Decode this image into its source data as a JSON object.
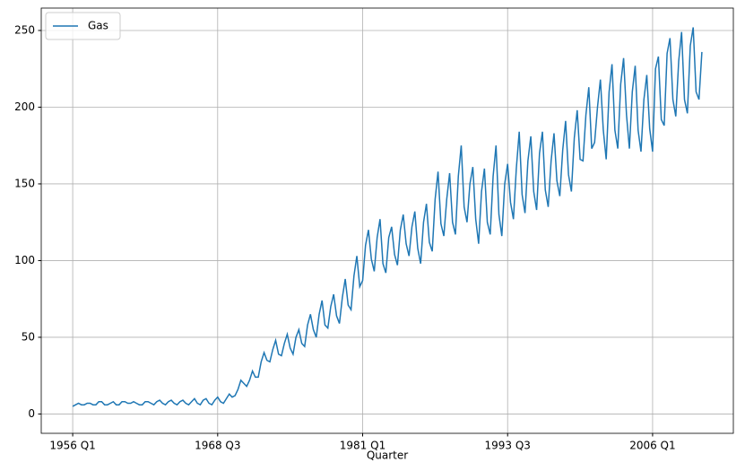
{
  "chart_data": {
    "type": "line",
    "x_label": "Quarter",
    "categories": [
      "1956 Q1",
      null,
      null,
      null,
      null,
      null,
      null,
      null,
      null,
      null,
      null,
      null,
      null,
      null,
      null,
      null,
      null,
      null,
      null,
      null,
      null,
      null,
      null,
      null,
      null,
      null,
      null,
      null,
      null,
      null,
      null,
      null,
      null,
      null,
      null,
      null,
      null,
      null,
      null,
      null,
      null,
      null,
      null,
      null,
      null,
      null,
      null,
      null,
      null,
      null,
      "1968 Q3",
      null,
      null,
      null,
      null,
      null,
      null,
      null,
      null,
      null,
      null,
      null,
      null,
      null,
      null,
      null,
      null,
      null,
      null,
      null,
      null,
      null,
      null,
      null,
      null,
      null,
      null,
      null,
      null,
      null,
      null,
      null,
      null,
      null,
      null,
      null,
      null,
      null,
      null,
      null,
      null,
      null,
      null,
      null,
      null,
      null,
      null,
      null,
      null,
      null,
      "1981 Q1",
      null,
      null,
      null,
      null,
      null,
      null,
      null,
      null,
      null,
      null,
      null,
      null,
      null,
      null,
      null,
      null,
      null,
      null,
      null,
      null,
      null,
      null,
      null,
      null,
      null,
      null,
      null,
      null,
      null,
      null,
      null,
      null,
      null,
      null,
      null,
      null,
      null,
      null,
      null,
      null,
      null,
      null,
      null,
      null,
      null,
      null,
      null,
      null,
      null,
      "1993 Q3",
      null,
      null,
      null,
      null,
      null,
      null,
      null,
      null,
      null,
      null,
      null,
      null,
      null,
      null,
      null,
      null,
      null,
      null,
      null,
      null,
      null,
      null,
      null,
      null,
      null,
      null,
      null,
      null,
      null,
      null,
      null,
      null,
      null,
      null,
      null,
      null,
      null,
      null,
      null,
      null,
      null,
      null,
      null,
      null,
      null,
      null,
      null,
      null,
      null,
      "2006 Q1",
      null,
      null,
      null,
      null,
      null,
      null,
      null,
      null,
      null,
      null,
      null,
      null,
      null,
      null,
      null,
      null,
      null
    ],
    "series": [
      {
        "name": "Gas",
        "color": "#1f77b4",
        "values": [
          5,
          6,
          7,
          6,
          6,
          7,
          7,
          6,
          6,
          8,
          8,
          6,
          6,
          7,
          8,
          6,
          6,
          8,
          8,
          7,
          7,
          8,
          7,
          6,
          6,
          8,
          8,
          7,
          6,
          8,
          9,
          7,
          6,
          8,
          9,
          7,
          6,
          8,
          9,
          7,
          6,
          8,
          10,
          7,
          6,
          9,
          10,
          7,
          6,
          9,
          11,
          8,
          7,
          10,
          13,
          11,
          12,
          16,
          22,
          20,
          18,
          22,
          28,
          24,
          24,
          34,
          40,
          35,
          34,
          42,
          48,
          39,
          38,
          46,
          52,
          43,
          39,
          50,
          55,
          46,
          44,
          58,
          65,
          55,
          50,
          65,
          74,
          58,
          56,
          70,
          78,
          64,
          59,
          76,
          88,
          71,
          68,
          90,
          103,
          83,
          87,
          110,
          120,
          101,
          93,
          115,
          127,
          98,
          92,
          115,
          122,
          104,
          97,
          120,
          130,
          111,
          103,
          122,
          132,
          108,
          98,
          125,
          137,
          112,
          106,
          140,
          158,
          124,
          116,
          140,
          157,
          125,
          117,
          155,
          175,
          135,
          125,
          150,
          161,
          127,
          111,
          145,
          160,
          125,
          117,
          155,
          175,
          130,
          116,
          150,
          163,
          138,
          127,
          160,
          184,
          143,
          131,
          165,
          181,
          145,
          133,
          170,
          184,
          146,
          135,
          165,
          183,
          152,
          142,
          172,
          191,
          156,
          145,
          180,
          198,
          166,
          165,
          195,
          213,
          173,
          177,
          200,
          218,
          185,
          166,
          210,
          228,
          185,
          173,
          215,
          232,
          195,
          173,
          210,
          227,
          185,
          171,
          205,
          221,
          186,
          171,
          225,
          233,
          192,
          188,
          235,
          245,
          205,
          194,
          230,
          249,
          205,
          196,
          240,
          252,
          210,
          205,
          236
        ]
      }
    ],
    "xlim": [
      -10.85,
      227.85
    ],
    "ylim": [
      -12.6,
      264.6
    ],
    "yticks": [
      0,
      50,
      100,
      150,
      200,
      250
    ],
    "grid": true,
    "legend": "upper left"
  }
}
